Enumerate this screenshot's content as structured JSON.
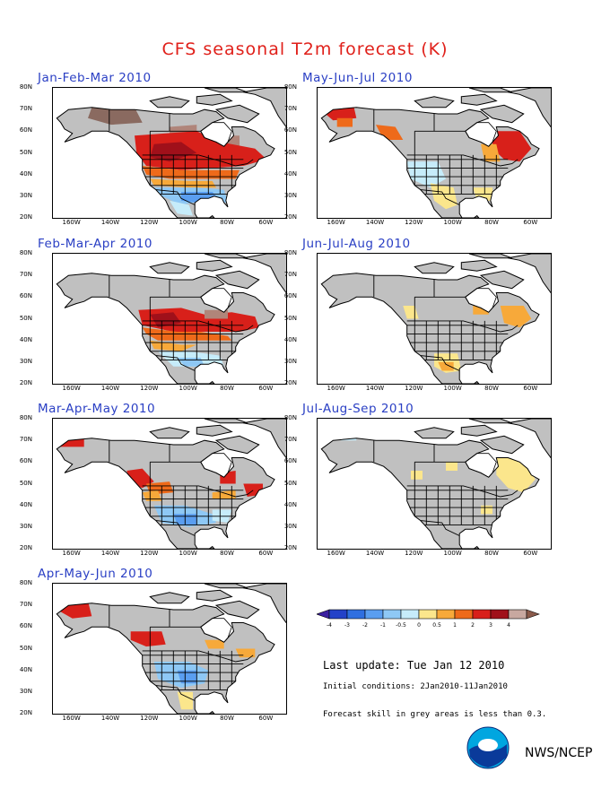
{
  "title": "CFS seasonal T2m forecast (K)",
  "panels": [
    {
      "label": "Jan-Feb-Mar 2010",
      "anomaly": "strong"
    },
    {
      "label": "Feb-Mar-Apr 2010",
      "anomaly": "mid"
    },
    {
      "label": "Mar-Apr-May 2010",
      "anomaly": "mild"
    },
    {
      "label": "Apr-May-Jun 2010",
      "anomaly": "mild2"
    },
    {
      "label": "May-Jun-Jul 2010",
      "anomaly": "summer1"
    },
    {
      "label": "Jun-Jul-Aug 2010",
      "anomaly": "summer2"
    },
    {
      "label": "Jul-Aug-Sep 2010",
      "anomaly": "summer3"
    }
  ],
  "axes": {
    "lat_labels": [
      "80N",
      "70N",
      "60N",
      "50N",
      "40N",
      "30N",
      "20N"
    ],
    "lon_labels": [
      "160W",
      "140W",
      "120W",
      "100W",
      "80W",
      "60W"
    ]
  },
  "colorbar": {
    "ticks": [
      "-4",
      "-3",
      "-2",
      "-1",
      "-0.5",
      "0",
      "0.5",
      "1",
      "2",
      "3",
      "4"
    ],
    "colors": [
      "#3a1fa0",
      "#2342c8",
      "#2f6fe0",
      "#5a9ef0",
      "#8ec8f5",
      "#c6ecfa",
      "#fbe68c",
      "#f7a93a",
      "#ee6a1a",
      "#d8201a",
      "#a0101a",
      "#c8a8a0",
      "#8a5a4a"
    ]
  },
  "info": {
    "last_update": "Last update: Tue Jan 12 2010",
    "initial_conditions": "Initial conditions: 2Jan2010-11Jan2010",
    "skill_note": "Forecast skill in grey areas is less than 0.3."
  },
  "footer": {
    "agency": "NWS/NCEP"
  }
}
